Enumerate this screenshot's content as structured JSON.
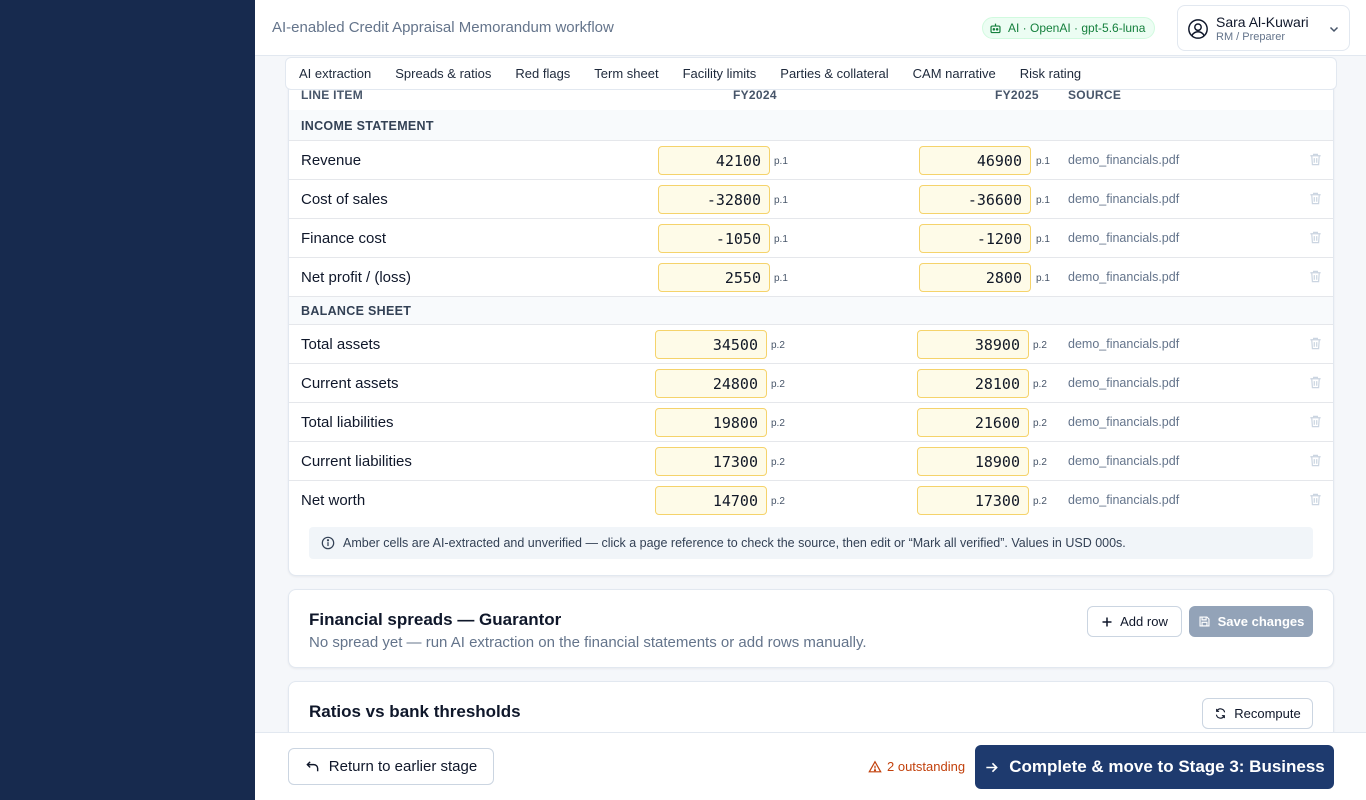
{
  "app": {
    "title": "AI-enabled Credit Appraisal Memorandum workflow",
    "ai_badge": "AI · OpenAI · gpt-5.6-luna",
    "user": {
      "name": "Sara Al-Kuwari",
      "role": "RM / Preparer"
    }
  },
  "tabs": [
    "AI extraction",
    "Spreads & ratios",
    "Red flags",
    "Term sheet",
    "Facility limits",
    "Parties & collateral",
    "CAM narrative",
    "Risk rating"
  ],
  "spread": {
    "columns": {
      "line_item": "LINE ITEM",
      "fy1": "FY2024",
      "fy2": "FY2025",
      "source": "SOURCE"
    },
    "sections": [
      {
        "title": "INCOME STATEMENT",
        "rows": [
          {
            "label": "Revenue",
            "fy1": "42100",
            "fy1_ref": "p.1",
            "fy2": "46900",
            "fy2_ref": "p.1",
            "source": "demo_financials.pdf"
          },
          {
            "label": "Cost of sales",
            "fy1": "-32800",
            "fy1_ref": "p.1",
            "fy2": "-36600",
            "fy2_ref": "p.1",
            "source": "demo_financials.pdf"
          },
          {
            "label": "Finance cost",
            "fy1": "-1050",
            "fy1_ref": "p.1",
            "fy2": "-1200",
            "fy2_ref": "p.1",
            "source": "demo_financials.pdf"
          },
          {
            "label": "Net profit / (loss)",
            "fy1": "2550",
            "fy1_ref": "p.1",
            "fy2": "2800",
            "fy2_ref": "p.1",
            "source": "demo_financials.pdf"
          }
        ]
      },
      {
        "title": "BALANCE SHEET",
        "rows": [
          {
            "label": "Total assets",
            "fy1": "34500",
            "fy1_ref": "p.2",
            "fy2": "38900",
            "fy2_ref": "p.2",
            "source": "demo_financials.pdf"
          },
          {
            "label": "Current assets",
            "fy1": "24800",
            "fy1_ref": "p.2",
            "fy2": "28100",
            "fy2_ref": "p.2",
            "source": "demo_financials.pdf"
          },
          {
            "label": "Total liabilities",
            "fy1": "19800",
            "fy1_ref": "p.2",
            "fy2": "21600",
            "fy2_ref": "p.2",
            "source": "demo_financials.pdf"
          },
          {
            "label": "Current liabilities",
            "fy1": "17300",
            "fy1_ref": "p.2",
            "fy2": "18900",
            "fy2_ref": "p.2",
            "source": "demo_financials.pdf"
          },
          {
            "label": "Net worth",
            "fy1": "14700",
            "fy1_ref": "p.2",
            "fy2": "17300",
            "fy2_ref": "p.2",
            "source": "demo_financials.pdf"
          }
        ]
      }
    ],
    "note": "Amber cells are AI-extracted and unverified — click a page reference to check the source, then edit or “Mark all verified”. Values in USD 000s."
  },
  "guarantor": {
    "title": "Financial spreads — Guarantor",
    "subtitle": "No spread yet — run AI extraction on the financial statements or add rows manually.",
    "add_row": "Add row",
    "save": "Save changes"
  },
  "ratios": {
    "title": "Ratios vs bank thresholds",
    "recompute": "Recompute"
  },
  "footer": {
    "back": "Return to earlier stage",
    "outstanding": "2 outstanding",
    "complete": "Complete & move to Stage 3: Business"
  },
  "colors": {
    "sidebar": "#172a4e",
    "primary": "#1e3a6e",
    "amber_cell": "#fefbe8",
    "amber_border": "#f5d36b",
    "ai_green": "#15803d",
    "warning": "#c2410c"
  }
}
